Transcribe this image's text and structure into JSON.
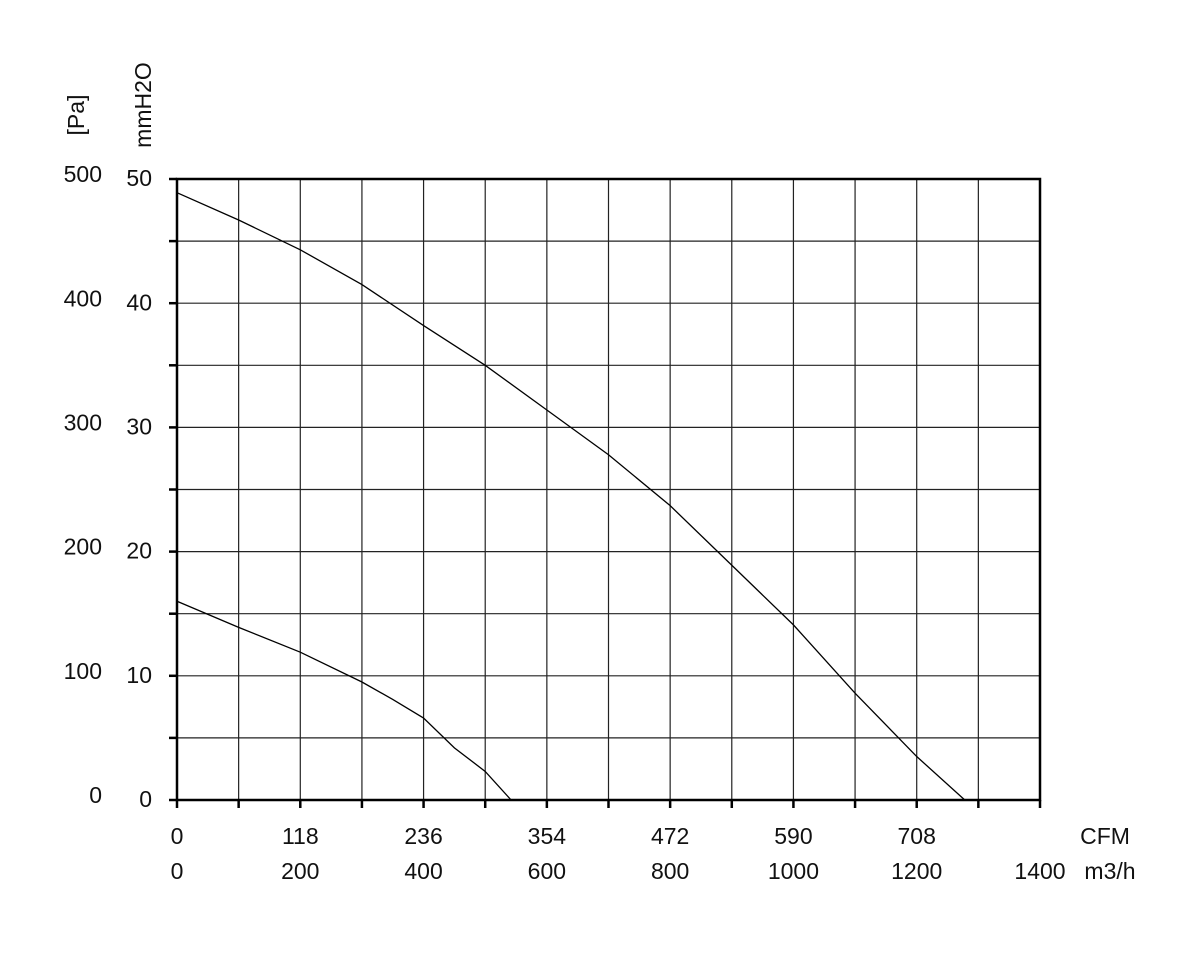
{
  "chart_data": {
    "type": "line",
    "x_label": "m3/h",
    "x2_label": "CFM",
    "y_label": "[Pa]",
    "y2_label": "mmH2O",
    "xlim": [
      0,
      1400
    ],
    "xticks": [
      0,
      200,
      400,
      600,
      800,
      1000,
      1200,
      1400
    ],
    "x2lim": [
      0,
      826
    ],
    "x2ticks": [
      0,
      118,
      236,
      354,
      472,
      590,
      708
    ],
    "ylim": [
      0,
      500
    ],
    "yticks": [
      0,
      100,
      200,
      300,
      400,
      500
    ],
    "y2lim": [
      0,
      50
    ],
    "y2ticks": [
      0,
      10,
      20,
      30,
      40,
      50
    ],
    "grid": true,
    "series": [
      {
        "color": "#000000",
        "x": [
          0,
          100,
          200,
          300,
          400,
          500,
          600,
          700,
          800,
          900,
          1000,
          1100,
          1200,
          1278
        ],
        "values": [
          489,
          467,
          443,
          415,
          382,
          350,
          314,
          278,
          237,
          189,
          141,
          86,
          35,
          0
        ]
      },
      {
        "color": "#000000",
        "x": [
          0,
          100,
          200,
          300,
          350,
          400,
          450,
          500,
          542
        ],
        "values": [
          160,
          139,
          119,
          95,
          81,
          66,
          42,
          23,
          0
        ]
      }
    ]
  }
}
